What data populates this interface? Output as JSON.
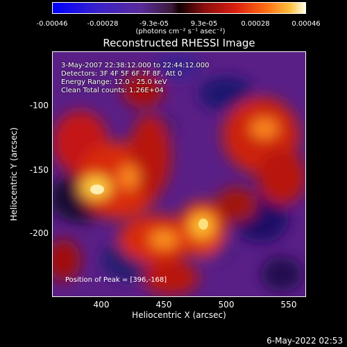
{
  "colorbar": {
    "tick_labels": [
      "-0.00046",
      "-0.00028",
      "-9.3e-05",
      "9.3e-05",
      "0.00028",
      "0.00046"
    ],
    "units": "(photons cm⁻² s⁻¹ asec⁻²)"
  },
  "plot": {
    "title": "Reconstructed RHESSI Image",
    "info_lines": [
      "3-May-2007 22:38:12.000 to 22:44:12.000",
      "Detectors: 3F 4F 5F 6F 7F 8F, Att 0",
      "Energy Range: 12.0 - 25.0 keV",
      "Clean     Total counts: 1.26E+04"
    ],
    "peak_text": "Position of Peak = [396,-168]",
    "xlabel": "Heliocentric X (arcsec)",
    "ylabel": "Heliocentric Y (arcsec)",
    "x_ticks": [
      "400",
      "450",
      "500",
      "550"
    ],
    "y_ticks": [
      "-100",
      "-150",
      "-200"
    ]
  },
  "footer": {
    "timestamp": "6-May-2022 02:53"
  }
}
